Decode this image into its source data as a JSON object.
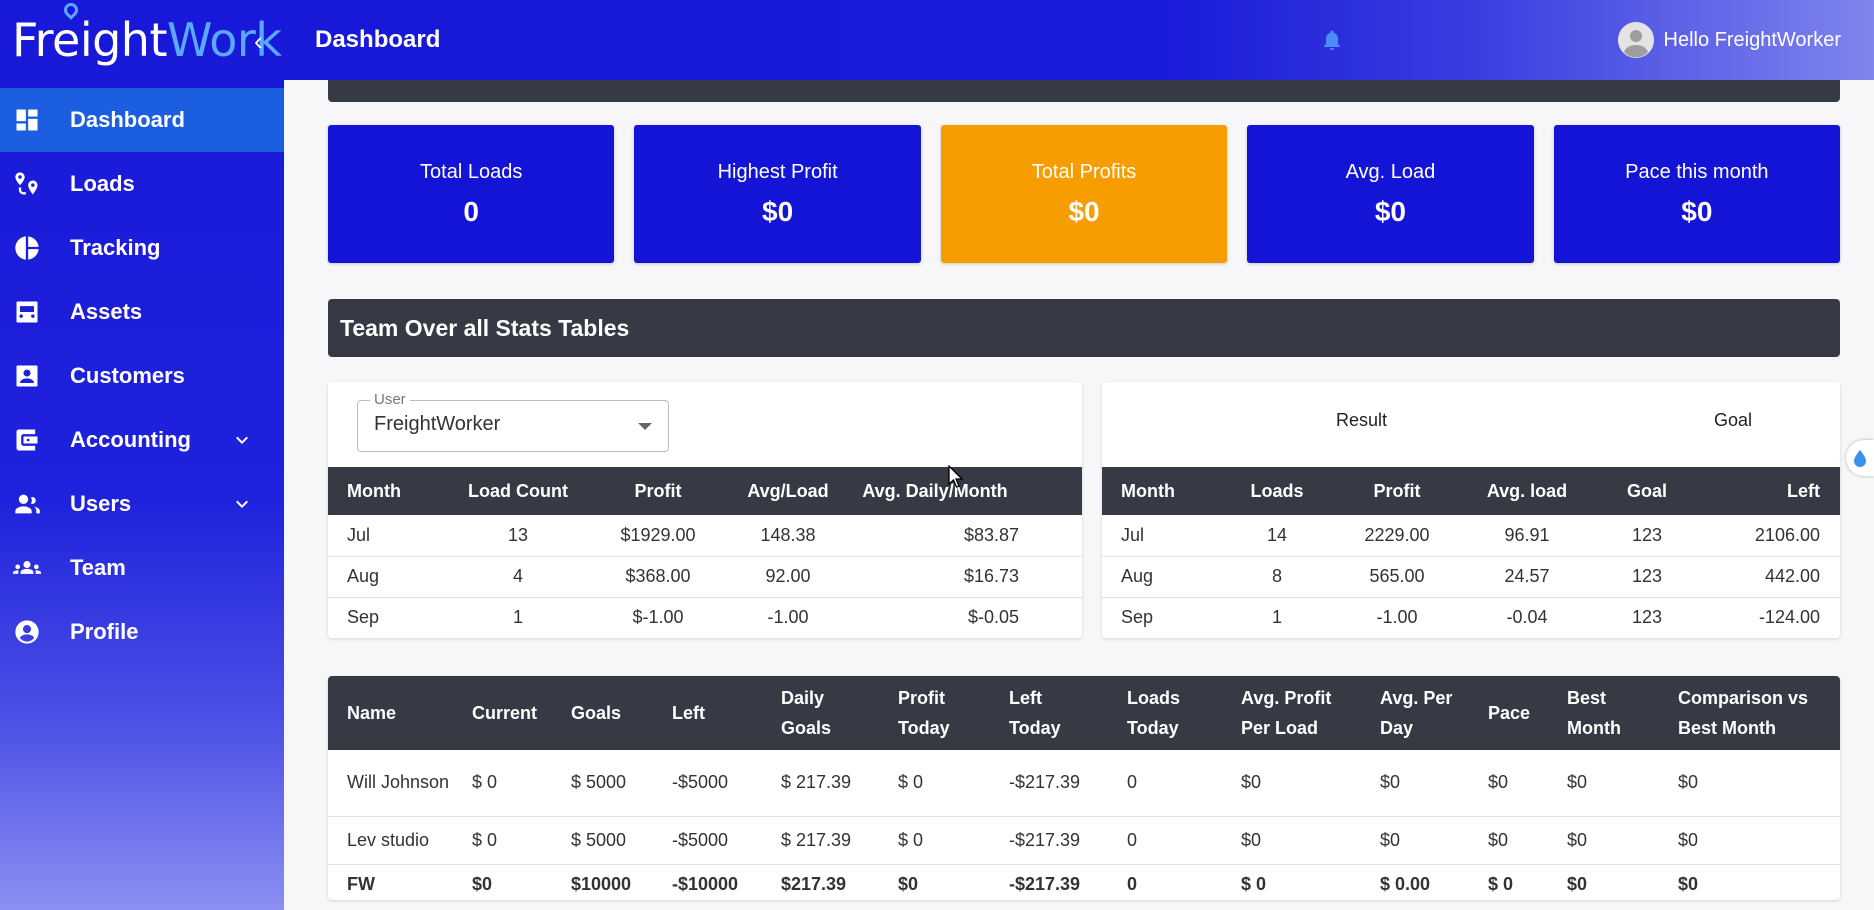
{
  "brand": {
    "part1": "Freight",
    "part2": "Work"
  },
  "header": {
    "title": "Dashboard",
    "greeting": "Hello FreightWorker"
  },
  "sidebar": {
    "items": [
      {
        "label": "Dashboard",
        "icon": "dashboard-icon",
        "active": true
      },
      {
        "label": "Loads",
        "icon": "route-pin-icon"
      },
      {
        "label": "Tracking",
        "icon": "pie-chart-icon"
      },
      {
        "label": "Assets",
        "icon": "truck-icon"
      },
      {
        "label": "Customers",
        "icon": "contact-card-icon"
      },
      {
        "label": "Accounting",
        "icon": "wallet-icon",
        "expandable": true
      },
      {
        "label": "Users",
        "icon": "people-icon",
        "expandable": true
      },
      {
        "label": "Team",
        "icon": "group-icon"
      },
      {
        "label": "Profile",
        "icon": "account-circle-icon"
      }
    ]
  },
  "cards": [
    {
      "label": "Total Loads",
      "value": "0"
    },
    {
      "label": "Highest Profit",
      "value": "$0"
    },
    {
      "label": "Total Profits",
      "value": "$0",
      "color": "#f89d00"
    },
    {
      "label": "Avg. Load",
      "value": "$0"
    },
    {
      "label": "Pace this month",
      "value": "$0"
    }
  ],
  "section_title": "Team Over all Stats Tables",
  "user_select": {
    "label": "User",
    "value": "FreightWorker"
  },
  "left_table": {
    "headers": [
      "Month",
      "Load Count",
      "Profit",
      "Avg/Load",
      "Avg. Daily/Month"
    ],
    "rows": [
      [
        "Jul",
        "13",
        "$1929.00",
        "148.38",
        "$83.87"
      ],
      [
        "Aug",
        "4",
        "$368.00",
        "92.00",
        "$16.73"
      ],
      [
        "Sep",
        "1",
        "$-1.00",
        "-1.00",
        "$-0.05"
      ]
    ]
  },
  "right_table": {
    "group_headers": {
      "result": "Result",
      "goal": "Goal"
    },
    "headers": [
      "Month",
      "Loads",
      "Profit",
      "Avg. load",
      "Goal",
      "Left"
    ],
    "rows": [
      [
        "Jul",
        "14",
        "2229.00",
        "96.91",
        "123",
        "2106.00"
      ],
      [
        "Aug",
        "8",
        "565.00",
        "24.57",
        "123",
        "442.00"
      ],
      [
        "Sep",
        "1",
        "-1.00",
        "-0.04",
        "123",
        "-124.00"
      ]
    ]
  },
  "bottom_table": {
    "headers": [
      [
        "Name"
      ],
      [
        "Current"
      ],
      [
        "Goals"
      ],
      [
        "Left"
      ],
      [
        "Daily",
        "Goals"
      ],
      [
        "Profit",
        "Today"
      ],
      [
        "Left",
        "Today"
      ],
      [
        "Loads",
        "Today"
      ],
      [
        "Avg. Profit",
        "Per Load"
      ],
      [
        "Avg. Per",
        "Day"
      ],
      [
        "Pace"
      ],
      [
        "Best",
        "Month"
      ],
      [
        "Comparison vs",
        "Best Month"
      ]
    ],
    "rows": [
      [
        "Will Johnson",
        "$ 0",
        "$ 5000",
        "-$5000",
        "$ 217.39",
        "$ 0",
        "-$217.39",
        "0",
        "$0",
        "$0",
        "$0",
        "$0",
        "$0"
      ],
      [
        "Lev studio",
        "$ 0",
        "$ 5000",
        "-$5000",
        "$ 217.39",
        "$ 0",
        "-$217.39",
        "0",
        "$0",
        "$0",
        "$0",
        "$0",
        "$0"
      ]
    ],
    "total": [
      "FW",
      "$0",
      "$10000",
      "-$10000",
      "$217.39",
      "$0",
      "-$217.39",
      "0",
      "$ 0",
      "$ 0.00",
      "$ 0",
      "$0",
      "$0"
    ]
  }
}
